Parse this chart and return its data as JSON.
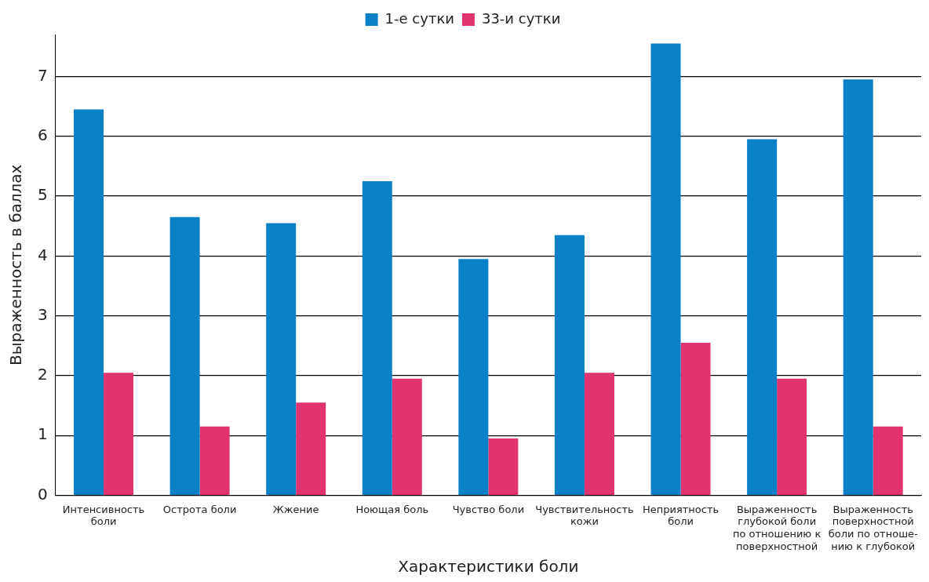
{
  "chart_data": {
    "type": "bar",
    "xlabel": "Характеристики боли",
    "ylabel": "Выраженность в баллах",
    "categories": [
      "Интенсивность\nболи",
      "Острота боли",
      "Жжение",
      "Ноющая боль",
      "Чувство боли",
      "Чувствительность\nкожи",
      "Неприятность\nболи",
      "Выраженность\nглубокой боли\nпо отношению к\nповерхностной",
      "Выраженность\nповерхностной\nболи по отноше-\nнию к глубокой"
    ],
    "series": [
      {
        "name": "1-е сутки",
        "color": "#0a80c6",
        "values": [
          6.45,
          4.65,
          4.55,
          5.25,
          3.95,
          4.35,
          7.55,
          5.95,
          6.95
        ]
      },
      {
        "name": "33-и сутки",
        "color": "#e0336f",
        "values": [
          2.05,
          1.15,
          1.55,
          1.95,
          0.95,
          2.05,
          2.55,
          1.95,
          1.15
        ]
      }
    ],
    "ylim": [
      0,
      7.7
    ],
    "yticks": [
      0,
      1,
      2,
      3,
      4,
      5,
      6,
      7
    ],
    "grid": "y",
    "legend": "top"
  }
}
